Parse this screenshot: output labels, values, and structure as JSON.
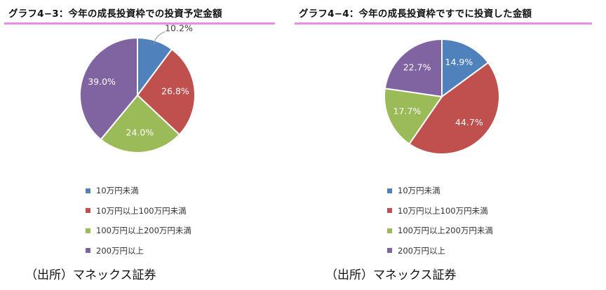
{
  "colors": {
    "blue": "#4f81bd",
    "red": "#c0504d",
    "green": "#9bbb59",
    "purple": "#8064a2",
    "underline": "#e98de4"
  },
  "chart_data": [
    {
      "type": "pie",
      "title": "グラフ4−3：今年の成長投資枠での投資予定金額",
      "categories": [
        "10万円未満",
        "10万円以上100万円未満",
        "100万円以上200万円未満",
        "200万円以上"
      ],
      "values": [
        10.2,
        26.8,
        24.0,
        39.0
      ],
      "labels": [
        "10.2%",
        "26.8%",
        "24.0%",
        "39.0%"
      ],
      "legend": "bottom",
      "source": "（出所）マネックス証券"
    },
    {
      "type": "pie",
      "title": "グラフ4−4：今年の成長投資枠ですでに投資した金額",
      "categories": [
        "10万円未満",
        "10万円以上100万円未満",
        "100万円以上200万円未満",
        "200万円以上"
      ],
      "values": [
        14.9,
        44.7,
        17.7,
        22.7
      ],
      "labels": [
        "14.9%",
        "44.7%",
        "17.7%",
        "22.7%"
      ],
      "legend": "bottom",
      "source": "（出所）マネックス証券"
    }
  ]
}
